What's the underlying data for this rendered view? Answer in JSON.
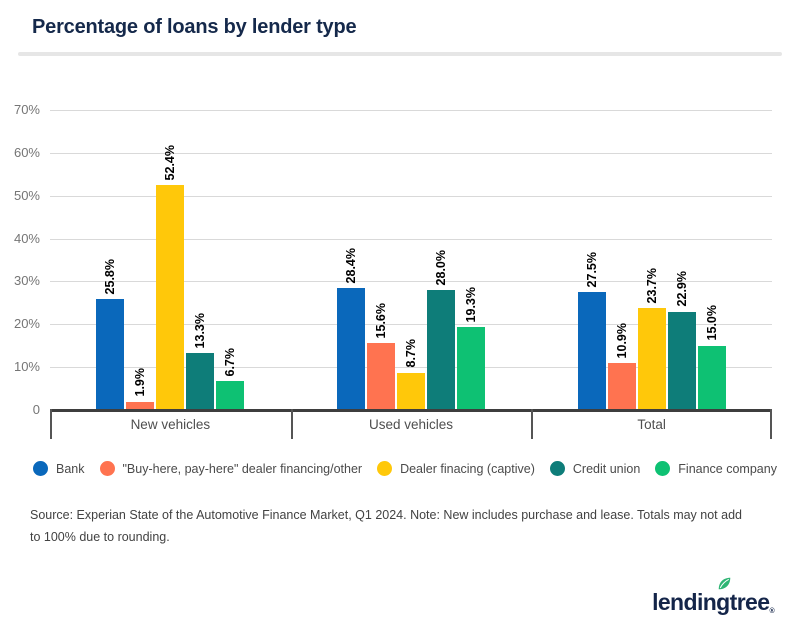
{
  "title": "Percentage of loans by lender type",
  "chart_data": {
    "type": "bar",
    "categories": [
      "New vehicles",
      "Used vehicles",
      "Total"
    ],
    "series": [
      {
        "name": "Bank",
        "color": "#0A68BB",
        "values": [
          25.8,
          28.4,
          27.5
        ]
      },
      {
        "name": "\"Buy-here, pay-here\" dealer financing/other",
        "color": "#FF7350",
        "values": [
          1.9,
          15.6,
          10.9
        ]
      },
      {
        "name": "Dealer finacing (captive)",
        "color": "#FFC80A",
        "values": [
          52.4,
          8.7,
          23.7
        ]
      },
      {
        "name": "Credit union",
        "color": "#0E7D79",
        "values": [
          13.3,
          28.0,
          22.9
        ]
      },
      {
        "name": "Finance company",
        "color": "#0EC173",
        "values": [
          6.7,
          19.3,
          15.0
        ]
      }
    ],
    "value_suffix": "%",
    "value_label_decimals": 1,
    "ylim": [
      0,
      70
    ],
    "ytick_step": 10,
    "ytick_labels": [
      "0",
      "10%",
      "20%",
      "30%",
      "40%",
      "50%",
      "60%",
      "70%"
    ],
    "grid": true,
    "legend_position": "bottom"
  },
  "source_note": "Source: Experian State of the Automotive Finance Market, Q1 2024. Note: New includes purchase and lease. Totals may not add to 100% due to rounding.",
  "logo": {
    "text": "lendingtree",
    "registered": "®",
    "leaf_color": "#2FB574",
    "text_color": "#142549"
  }
}
